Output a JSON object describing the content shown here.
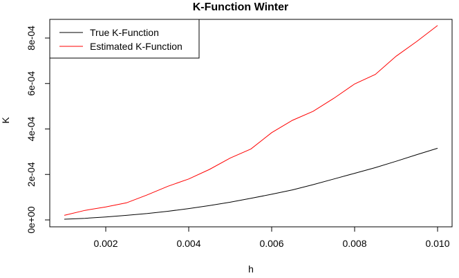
{
  "chart_data": {
    "type": "line",
    "title": "K-Function Winter",
    "xlabel": "h",
    "ylabel": "K",
    "xlim": [
      0.001,
      0.01
    ],
    "ylim": [
      0,
      0.00085
    ],
    "x_ticks": [
      {
        "value": 0.002,
        "label": "0.002"
      },
      {
        "value": 0.004,
        "label": "0.004"
      },
      {
        "value": 0.006,
        "label": "0.006"
      },
      {
        "value": 0.008,
        "label": "0.008"
      },
      {
        "value": 0.01,
        "label": "0.010"
      }
    ],
    "y_ticks": [
      {
        "value": 0,
        "label": "0e+00"
      },
      {
        "value": 0.0002,
        "label": "2e-04"
      },
      {
        "value": 0.0004,
        "label": "4e-04"
      },
      {
        "value": 0.0006,
        "label": "6e-04"
      },
      {
        "value": 0.0008,
        "label": "8e-04"
      }
    ],
    "legend": {
      "position": "top-left",
      "boxed": true
    },
    "grid": false,
    "series": [
      {
        "name": "True K-Function",
        "color": "#000000",
        "x": [
          0.001,
          0.0015,
          0.002,
          0.0025,
          0.003,
          0.0035,
          0.004,
          0.0045,
          0.005,
          0.0055,
          0.006,
          0.0065,
          0.007,
          0.0075,
          0.008,
          0.0085,
          0.009,
          0.0095,
          0.01
        ],
        "values": [
          3e-06,
          7e-06,
          1.3e-05,
          2e-05,
          2.8e-05,
          3.8e-05,
          5e-05,
          6.3e-05,
          7.8e-05,
          9.5e-05,
          0.000113,
          0.000132,
          0.000155,
          0.00018,
          0.000205,
          0.00023,
          0.000258,
          0.000287,
          0.000315
        ]
      },
      {
        "name": "Estimated K-Function",
        "color": "#ff0000",
        "x": [
          0.001,
          0.0015,
          0.002,
          0.0025,
          0.003,
          0.0035,
          0.004,
          0.0045,
          0.005,
          0.0055,
          0.006,
          0.0065,
          0.007,
          0.0075,
          0.008,
          0.0085,
          0.009,
          0.0095,
          0.01
        ],
        "values": [
          2e-05,
          4.2e-05,
          5.7e-05,
          7.5e-05,
          0.00011,
          0.000148,
          0.00018,
          0.000222,
          0.000272,
          0.000312,
          0.000384,
          0.000438,
          0.000478,
          0.000535,
          0.000598,
          0.00064,
          0.00072,
          0.000785,
          0.000855
        ]
      }
    ]
  }
}
